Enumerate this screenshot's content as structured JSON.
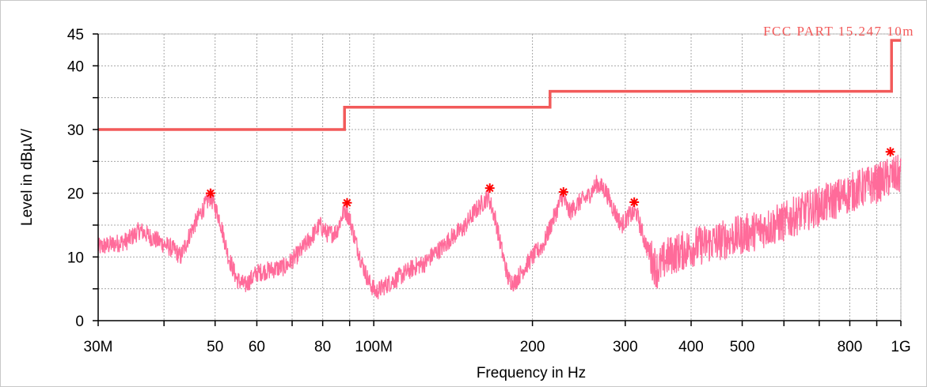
{
  "chart_data": {
    "type": "line",
    "xlabel": "Frequency in Hz",
    "ylabel": "Level in dBµV/",
    "xscale": "log",
    "xlim": [
      30000000,
      1000000000
    ],
    "ylim": [
      0,
      45
    ],
    "grid": true,
    "x_ticks": [
      {
        "value": 30000000,
        "label": "30M"
      },
      {
        "value": 40000000,
        "label": ""
      },
      {
        "value": 50000000,
        "label": "50"
      },
      {
        "value": 60000000,
        "label": "60"
      },
      {
        "value": 70000000,
        "label": ""
      },
      {
        "value": 80000000,
        "label": "80"
      },
      {
        "value": 90000000,
        "label": ""
      },
      {
        "value": 100000000,
        "label": "100M"
      },
      {
        "value": 200000000,
        "label": "200"
      },
      {
        "value": 300000000,
        "label": "300"
      },
      {
        "value": 400000000,
        "label": "400"
      },
      {
        "value": 500000000,
        "label": "500"
      },
      {
        "value": 600000000,
        "label": ""
      },
      {
        "value": 700000000,
        "label": ""
      },
      {
        "value": 800000000,
        "label": "800"
      },
      {
        "value": 900000000,
        "label": ""
      },
      {
        "value": 1000000000,
        "label": "1G"
      }
    ],
    "y_ticks": [
      {
        "value": 0,
        "label": "0"
      },
      {
        "value": 5,
        "label": ""
      },
      {
        "value": 10,
        "label": "10"
      },
      {
        "value": 15,
        "label": ""
      },
      {
        "value": 20,
        "label": "20"
      },
      {
        "value": 25,
        "label": ""
      },
      {
        "value": 30,
        "label": "30"
      },
      {
        "value": 35,
        "label": ""
      },
      {
        "value": 40,
        "label": "40"
      },
      {
        "value": 45,
        "label": "45"
      }
    ],
    "limit_line": {
      "name": "FCC PART 15.247 10m",
      "color": "#f25a5a",
      "points": [
        [
          30000000,
          30
        ],
        [
          88000000,
          30
        ],
        [
          88000000,
          33.5
        ],
        [
          216000000,
          33.5
        ],
        [
          216000000,
          36
        ],
        [
          960000000,
          36
        ],
        [
          960000000,
          44
        ],
        [
          1000000000,
          44
        ]
      ]
    },
    "measurement": {
      "color": "#ff6b9a",
      "points": [
        [
          30000000,
          11.5
        ],
        [
          32000000,
          12
        ],
        [
          34000000,
          12.5
        ],
        [
          36000000,
          14.2
        ],
        [
          38000000,
          13
        ],
        [
          40000000,
          12
        ],
        [
          42000000,
          11
        ],
        [
          43000000,
          10
        ],
        [
          45000000,
          14
        ],
        [
          47000000,
          17
        ],
        [
          49000000,
          19.5
        ],
        [
          51000000,
          16
        ],
        [
          53000000,
          10
        ],
        [
          55000000,
          6.5
        ],
        [
          57000000,
          5.5
        ],
        [
          60000000,
          7.5
        ],
        [
          64000000,
          8
        ],
        [
          68000000,
          8.5
        ],
        [
          72000000,
          10.5
        ],
        [
          76000000,
          13
        ],
        [
          79000000,
          15
        ],
        [
          82000000,
          13.5
        ],
        [
          85000000,
          14
        ],
        [
          88000000,
          17.5
        ],
        [
          90000000,
          16
        ],
        [
          92000000,
          13
        ],
        [
          95000000,
          9
        ],
        [
          98000000,
          6
        ],
        [
          101000000,
          4.5
        ],
        [
          105000000,
          5.5
        ],
        [
          110000000,
          6.5
        ],
        [
          115000000,
          7.5
        ],
        [
          120000000,
          8.5
        ],
        [
          125000000,
          9
        ],
        [
          130000000,
          10.5
        ],
        [
          135000000,
          11.5
        ],
        [
          140000000,
          13
        ],
        [
          148000000,
          14.5
        ],
        [
          155000000,
          17
        ],
        [
          165000000,
          19.5
        ],
        [
          170000000,
          16
        ],
        [
          175000000,
          11
        ],
        [
          180000000,
          6.5
        ],
        [
          185000000,
          6
        ],
        [
          192000000,
          8
        ],
        [
          200000000,
          10
        ],
        [
          210000000,
          12
        ],
        [
          218000000,
          15.5
        ],
        [
          228000000,
          19.5
        ],
        [
          235000000,
          17
        ],
        [
          245000000,
          18.5
        ],
        [
          255000000,
          19.5
        ],
        [
          265000000,
          21.5
        ],
        [
          275000000,
          20.5
        ],
        [
          285000000,
          17.5
        ],
        [
          295000000,
          15
        ],
        [
          305000000,
          16.5
        ],
        [
          315000000,
          17
        ],
        [
          325000000,
          13
        ],
        [
          335000000,
          10
        ],
        [
          345000000,
          8
        ],
        [
          360000000,
          10
        ],
        [
          400000000,
          11.5
        ],
        [
          450000000,
          12.5
        ],
        [
          500000000,
          13.5
        ],
        [
          550000000,
          14.5
        ],
        [
          600000000,
          15.5
        ],
        [
          650000000,
          17
        ],
        [
          700000000,
          18
        ],
        [
          750000000,
          19
        ],
        [
          800000000,
          20
        ],
        [
          850000000,
          21
        ],
        [
          900000000,
          21.5
        ],
        [
          950000000,
          22.5
        ],
        [
          1000000000,
          23
        ]
      ]
    },
    "peak_markers": [
      {
        "x": 49000000,
        "y": 20.0
      },
      {
        "x": 89000000,
        "y": 18.5
      },
      {
        "x": 166000000,
        "y": 20.8
      },
      {
        "x": 229000000,
        "y": 20.2
      },
      {
        "x": 312000000,
        "y": 18.6
      },
      {
        "x": 955000000,
        "y": 26.5
      }
    ]
  }
}
